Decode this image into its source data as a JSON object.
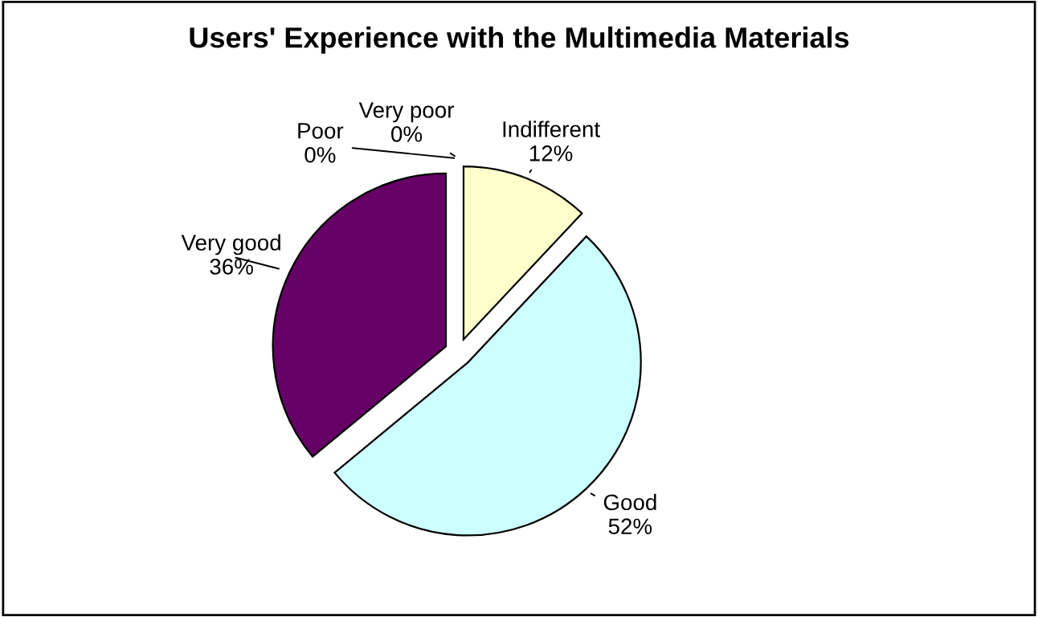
{
  "chart_data": {
    "type": "pie",
    "title": "Users' Experience with the Multimedia Materials",
    "categories": [
      "Indifferent",
      "Good",
      "Very good",
      "Poor",
      "Very poor"
    ],
    "values": [
      12,
      52,
      36,
      0,
      0
    ],
    "value_labels": [
      "12%",
      "52%",
      "36%",
      "0%",
      "0%"
    ],
    "colors": [
      "#ffffcc",
      "#ccffff",
      "#660066",
      "#9999ff",
      "#993366"
    ]
  }
}
